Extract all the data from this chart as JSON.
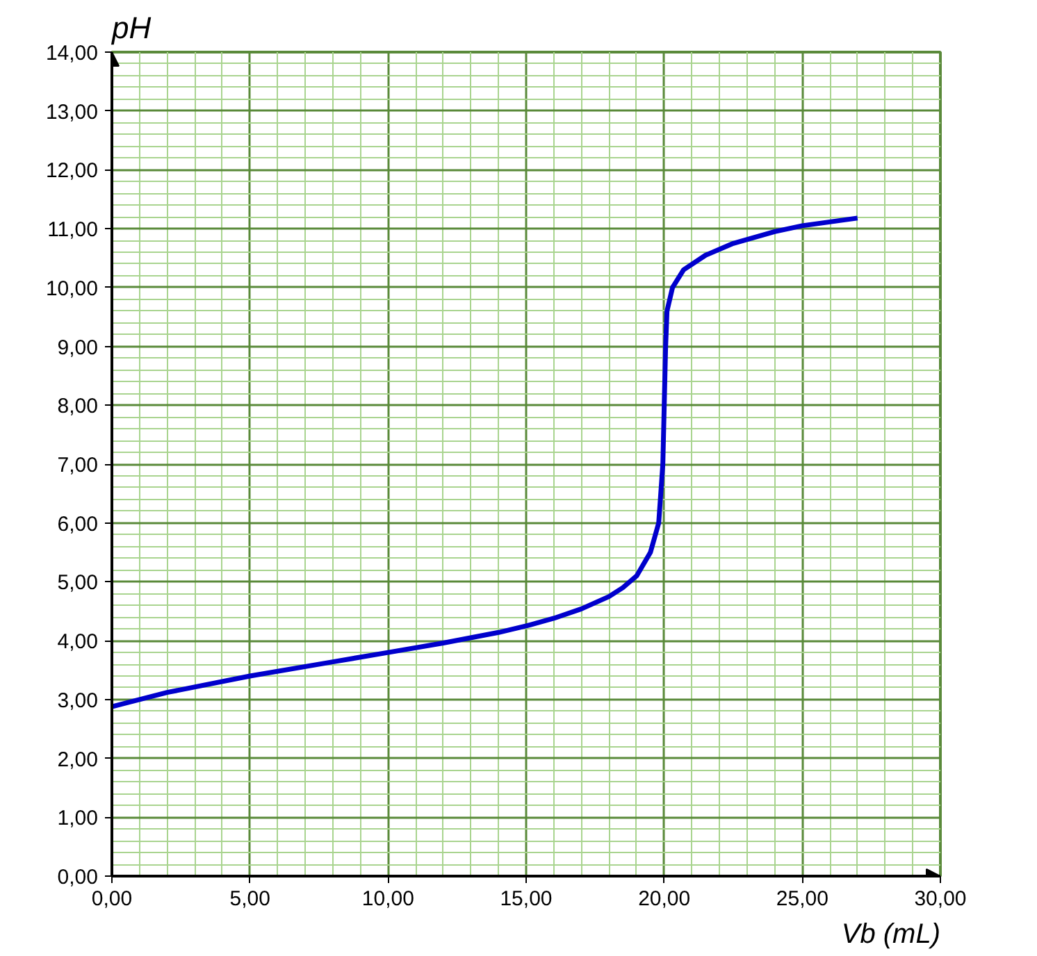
{
  "chart_data": {
    "type": "line",
    "xlabel": "Vb (mL)",
    "ylabel": "pH",
    "x": [
      0,
      2,
      5,
      8,
      10,
      12,
      14,
      15,
      16,
      17,
      18,
      18.5,
      19,
      19.5,
      19.8,
      19.95,
      20.0,
      20.05,
      20.1,
      20.3,
      20.7,
      21.5,
      22.5,
      24,
      25,
      27
    ],
    "series": [
      {
        "color": "#0000cc",
        "values": [
          2.88,
          3.12,
          3.4,
          3.64,
          3.8,
          3.96,
          4.14,
          4.25,
          4.38,
          4.54,
          4.75,
          4.9,
          5.1,
          5.5,
          6.0,
          7.0,
          8.0,
          9.0,
          9.6,
          10.0,
          10.3,
          10.55,
          10.75,
          10.95,
          11.05,
          11.18
        ]
      }
    ],
    "xlim": [
      0,
      30
    ],
    "ylim": [
      0,
      14
    ],
    "xticks": [
      {
        "value": 0,
        "label": "0,00"
      },
      {
        "value": 1,
        "label": null
      },
      {
        "value": 2,
        "label": null
      },
      {
        "value": 3,
        "label": null
      },
      {
        "value": 4,
        "label": null
      },
      {
        "value": 5,
        "label": "5,00"
      },
      {
        "value": 6,
        "label": null
      },
      {
        "value": 7,
        "label": null
      },
      {
        "value": 8,
        "label": null
      },
      {
        "value": 9,
        "label": null
      },
      {
        "value": 10,
        "label": "10,00"
      },
      {
        "value": 11,
        "label": null
      },
      {
        "value": 12,
        "label": null
      },
      {
        "value": 13,
        "label": null
      },
      {
        "value": 14,
        "label": null
      },
      {
        "value": 15,
        "label": "15,00"
      },
      {
        "value": 16,
        "label": null
      },
      {
        "value": 17,
        "label": null
      },
      {
        "value": 18,
        "label": null
      },
      {
        "value": 19,
        "label": null
      },
      {
        "value": 20,
        "label": "20,00"
      },
      {
        "value": 21,
        "label": null
      },
      {
        "value": 22,
        "label": null
      },
      {
        "value": 23,
        "label": null
      },
      {
        "value": 24,
        "label": null
      },
      {
        "value": 25,
        "label": "25,00"
      },
      {
        "value": 26,
        "label": null
      },
      {
        "value": 27,
        "label": null
      },
      {
        "value": 28,
        "label": null
      },
      {
        "value": 29,
        "label": null
      },
      {
        "value": 30,
        "label": "30,00"
      }
    ],
    "yticks": [
      {
        "value": 0,
        "label": "0,00"
      },
      {
        "value": 0.2,
        "label": null
      },
      {
        "value": 0.4,
        "label": null
      },
      {
        "value": 0.6,
        "label": null
      },
      {
        "value": 0.8,
        "label": null
      },
      {
        "value": 1,
        "label": "1,00"
      },
      {
        "value": 1.2,
        "label": null
      },
      {
        "value": 1.4,
        "label": null
      },
      {
        "value": 1.6,
        "label": null
      },
      {
        "value": 1.8,
        "label": null
      },
      {
        "value": 2,
        "label": "2,00"
      },
      {
        "value": 2.2,
        "label": null
      },
      {
        "value": 2.4,
        "label": null
      },
      {
        "value": 2.6,
        "label": null
      },
      {
        "value": 2.8,
        "label": null
      },
      {
        "value": 3,
        "label": "3,00"
      },
      {
        "value": 3.2,
        "label": null
      },
      {
        "value": 3.4,
        "label": null
      },
      {
        "value": 3.6,
        "label": null
      },
      {
        "value": 3.8,
        "label": null
      },
      {
        "value": 4,
        "label": "4,00"
      },
      {
        "value": 4.2,
        "label": null
      },
      {
        "value": 4.4,
        "label": null
      },
      {
        "value": 4.6,
        "label": null
      },
      {
        "value": 4.8,
        "label": null
      },
      {
        "value": 5,
        "label": "5,00"
      },
      {
        "value": 5.2,
        "label": null
      },
      {
        "value": 5.4,
        "label": null
      },
      {
        "value": 5.6,
        "label": null
      },
      {
        "value": 5.8,
        "label": null
      },
      {
        "value": 6,
        "label": "6,00"
      },
      {
        "value": 6.2,
        "label": null
      },
      {
        "value": 6.4,
        "label": null
      },
      {
        "value": 6.6,
        "label": null
      },
      {
        "value": 6.8,
        "label": null
      },
      {
        "value": 7,
        "label": "7,00"
      },
      {
        "value": 7.2,
        "label": null
      },
      {
        "value": 7.4,
        "label": null
      },
      {
        "value": 7.6,
        "label": null
      },
      {
        "value": 7.8,
        "label": null
      },
      {
        "value": 8,
        "label": "8,00"
      },
      {
        "value": 8.2,
        "label": null
      },
      {
        "value": 8.4,
        "label": null
      },
      {
        "value": 8.6,
        "label": null
      },
      {
        "value": 8.8,
        "label": null
      },
      {
        "value": 9,
        "label": "9,00"
      },
      {
        "value": 9.2,
        "label": null
      },
      {
        "value": 9.4,
        "label": null
      },
      {
        "value": 9.6,
        "label": null
      },
      {
        "value": 9.8,
        "label": null
      },
      {
        "value": 10,
        "label": "10,00"
      },
      {
        "value": 10.2,
        "label": null
      },
      {
        "value": 10.4,
        "label": null
      },
      {
        "value": 10.6,
        "label": null
      },
      {
        "value": 10.8,
        "label": null
      },
      {
        "value": 11,
        "label": "11,00"
      },
      {
        "value": 11.2,
        "label": null
      },
      {
        "value": 11.4,
        "label": null
      },
      {
        "value": 11.6,
        "label": null
      },
      {
        "value": 11.8,
        "label": null
      },
      {
        "value": 12,
        "label": "12,00"
      },
      {
        "value": 12.2,
        "label": null
      },
      {
        "value": 12.4,
        "label": null
      },
      {
        "value": 12.6,
        "label": null
      },
      {
        "value": 12.8,
        "label": null
      },
      {
        "value": 13,
        "label": "13,00"
      },
      {
        "value": 13.2,
        "label": null
      },
      {
        "value": 13.4,
        "label": null
      },
      {
        "value": 13.6,
        "label": null
      },
      {
        "value": 13.8,
        "label": null
      },
      {
        "value": 14,
        "label": "14,00"
      }
    ],
    "grid": true,
    "line_style": "solid"
  }
}
